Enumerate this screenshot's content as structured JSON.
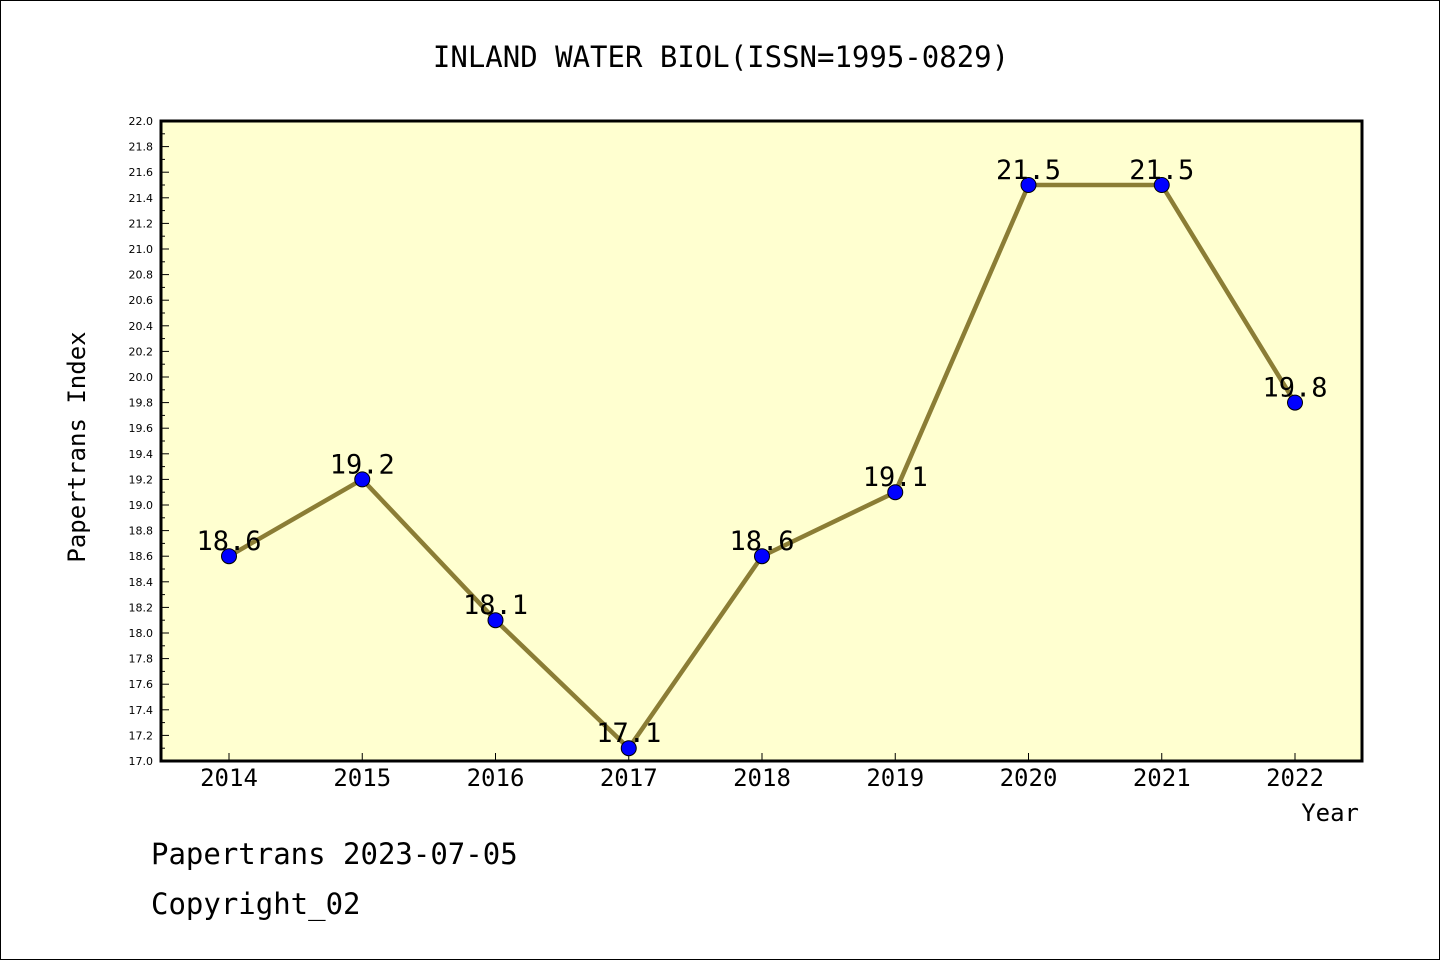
{
  "chart_data": {
    "type": "line",
    "title": "INLAND WATER BIOL(ISSN=1995-0829)",
    "xlabel": "Year",
    "ylabel": "Papertrans Index",
    "categories": [
      "2014",
      "2015",
      "2016",
      "2017",
      "2018",
      "2019",
      "2020",
      "2021",
      "2022"
    ],
    "series": [
      {
        "values": [
          18.6,
          19.2,
          18.1,
          17.1,
          18.6,
          19.1,
          21.5,
          21.5,
          19.8
        ],
        "labels": [
          "18.6",
          "19.2",
          "18.1",
          "17.1",
          "18.6",
          "19.1",
          "21.5",
          "21.5",
          "19.8"
        ],
        "line_color": "#8b7d35",
        "marker_color": "#0000ff"
      }
    ],
    "ylim": [
      17.0,
      22.0
    ],
    "y_ticks": [
      "17.0",
      "17.2",
      "17.4",
      "17.6",
      "17.8",
      "18.0",
      "18.2",
      "18.4",
      "18.6",
      "18.8",
      "19.0",
      "19.2",
      "19.4",
      "19.6",
      "19.8",
      "20.0",
      "20.2",
      "20.4",
      "20.6",
      "20.8",
      "21.0",
      "21.2",
      "21.4",
      "21.6",
      "21.8",
      "22.0"
    ],
    "grid": false,
    "plot_background": "#ffffd0"
  },
  "footer": {
    "line1": "Papertrans 2023-07-05",
    "line2": "Copyright_02"
  }
}
